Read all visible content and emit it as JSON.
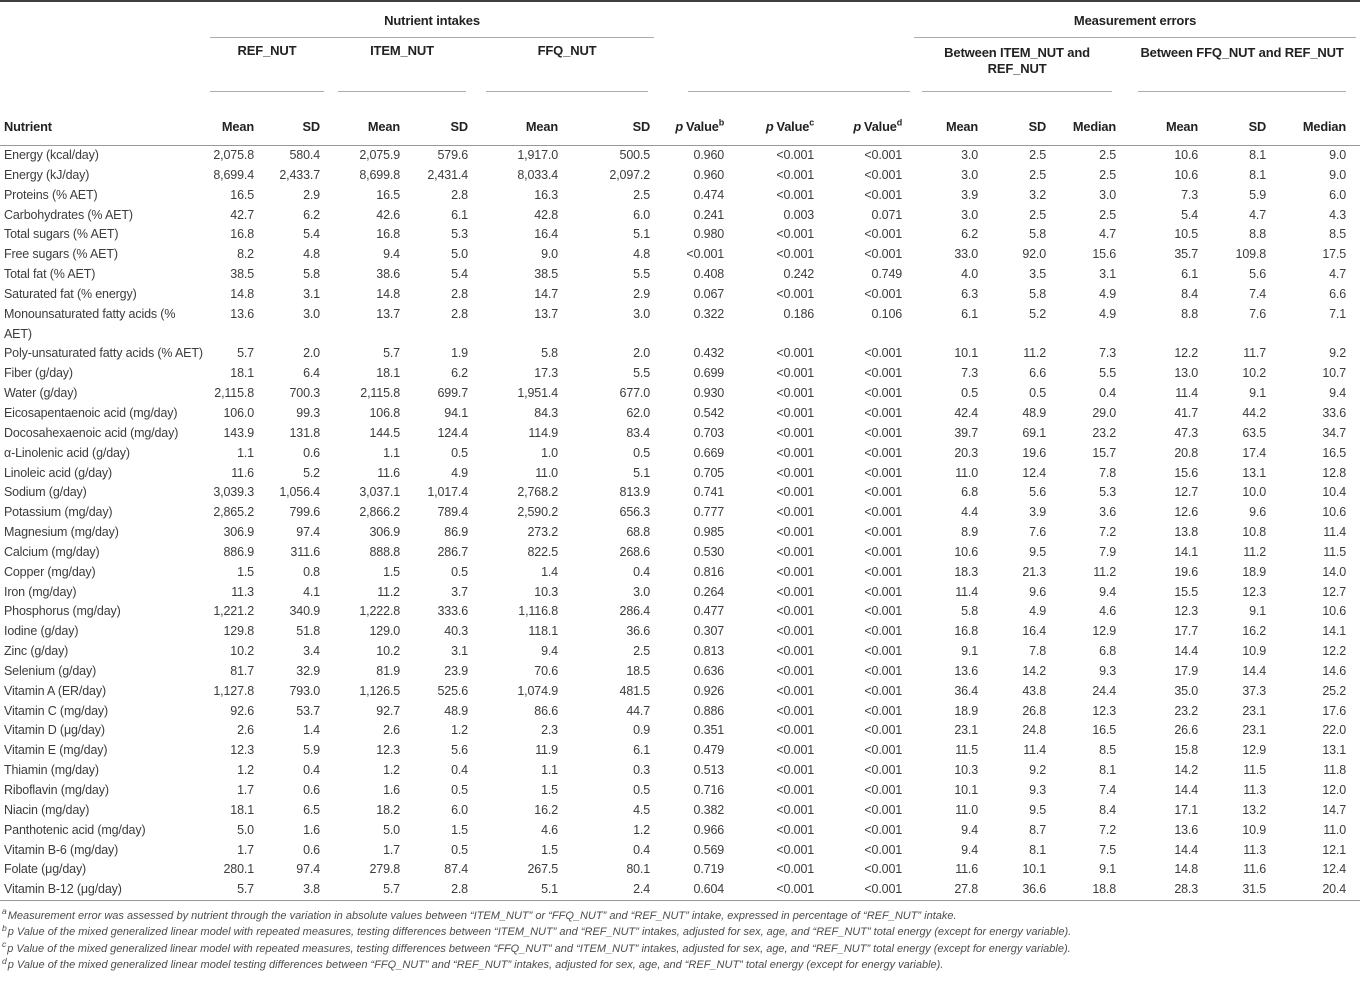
{
  "table": {
    "col_groups": {
      "nutrient_intakes": "Nutrient intakes",
      "measurement_errors": "Measurement errors"
    },
    "sub_groups": {
      "ref": "REF_NUT",
      "item": "ITEM_NUT",
      "ffq": "FFQ_NUT",
      "between_item_ref": "Between ITEM_NUT and REF_NUT",
      "between_ffq_ref": "Between FFQ_NUT and REF_NUT"
    },
    "columns": {
      "nutrient": "Nutrient",
      "mean": "Mean",
      "sd": "SD",
      "median": "Median",
      "p": "p",
      "value_word": "Value",
      "p_sups": [
        "b",
        "c",
        "d"
      ]
    },
    "rows": [
      {
        "name": "Energy (kcal/day)",
        "values": [
          "2,075.8",
          "580.4",
          "2,075.9",
          "579.6",
          "1,917.0",
          "500.5",
          "0.960",
          "<0.001",
          "<0.001",
          "3.0",
          "2.5",
          "2.5",
          "10.6",
          "8.1",
          "9.0"
        ]
      },
      {
        "name": "Energy (kJ/day)",
        "values": [
          "8,699.4",
          "2,433.7",
          "8,699.8",
          "2,431.4",
          "8,033.4",
          "2,097.2",
          "0.960",
          "<0.001",
          "<0.001",
          "3.0",
          "2.5",
          "2.5",
          "10.6",
          "8.1",
          "9.0"
        ]
      },
      {
        "name": "Proteins (% AET)",
        "values": [
          "16.5",
          "2.9",
          "16.5",
          "2.8",
          "16.3",
          "2.5",
          "0.474",
          "<0.001",
          "<0.001",
          "3.9",
          "3.2",
          "3.0",
          "7.3",
          "5.9",
          "6.0"
        ]
      },
      {
        "name": "Carbohydrates (% AET)",
        "values": [
          "42.7",
          "6.2",
          "42.6",
          "6.1",
          "42.8",
          "6.0",
          "0.241",
          "0.003",
          "0.071",
          "3.0",
          "2.5",
          "2.5",
          "5.4",
          "4.7",
          "4.3"
        ]
      },
      {
        "name": "Total sugars (% AET)",
        "values": [
          "16.8",
          "5.4",
          "16.8",
          "5.3",
          "16.4",
          "5.1",
          "0.980",
          "<0.001",
          "<0.001",
          "6.2",
          "5.8",
          "4.7",
          "10.5",
          "8.8",
          "8.5"
        ]
      },
      {
        "name": "Free sugars (% AET)",
        "values": [
          "8.2",
          "4.8",
          "9.4",
          "5.0",
          "9.0",
          "4.8",
          "<0.001",
          "<0.001",
          "<0.001",
          "33.0",
          "92.0",
          "15.6",
          "35.7",
          "109.8",
          "17.5"
        ]
      },
      {
        "name": "Total fat (% AET)",
        "values": [
          "38.5",
          "5.8",
          "38.6",
          "5.4",
          "38.5",
          "5.5",
          "0.408",
          "0.242",
          "0.749",
          "4.0",
          "3.5",
          "3.1",
          "6.1",
          "5.6",
          "4.7"
        ]
      },
      {
        "name": "Saturated fat (% energy)",
        "values": [
          "14.8",
          "3.1",
          "14.8",
          "2.8",
          "14.7",
          "2.9",
          "0.067",
          "<0.001",
          "<0.001",
          "6.3",
          "5.8",
          "4.9",
          "8.4",
          "7.4",
          "6.6"
        ]
      },
      {
        "name": "Monounsaturated fatty acids (% AET)",
        "values": [
          "13.6",
          "3.0",
          "13.7",
          "2.8",
          "13.7",
          "3.0",
          "0.322",
          "0.186",
          "0.106",
          "6.1",
          "5.2",
          "4.9",
          "8.8",
          "7.6",
          "7.1"
        ]
      },
      {
        "name": "Poly-unsaturated fatty acids (% AET)",
        "values": [
          "5.7",
          "2.0",
          "5.7",
          "1.9",
          "5.8",
          "2.0",
          "0.432",
          "<0.001",
          "<0.001",
          "10.1",
          "11.2",
          "7.3",
          "12.2",
          "11.7",
          "9.2"
        ]
      },
      {
        "name": "Fiber (g/day)",
        "values": [
          "18.1",
          "6.4",
          "18.1",
          "6.2",
          "17.3",
          "5.5",
          "0.699",
          "<0.001",
          "<0.001",
          "7.3",
          "6.6",
          "5.5",
          "13.0",
          "10.2",
          "10.7"
        ]
      },
      {
        "name": "Water (g/day)",
        "values": [
          "2,115.8",
          "700.3",
          "2,115.8",
          "699.7",
          "1,951.4",
          "677.0",
          "0.930",
          "<0.001",
          "<0.001",
          "0.5",
          "0.5",
          "0.4",
          "11.4",
          "9.1",
          "9.4"
        ]
      },
      {
        "name": "Eicosapentaenoic acid (mg/day)",
        "values": [
          "106.0",
          "99.3",
          "106.8",
          "94.1",
          "84.3",
          "62.0",
          "0.542",
          "<0.001",
          "<0.001",
          "42.4",
          "48.9",
          "29.0",
          "41.7",
          "44.2",
          "33.6"
        ]
      },
      {
        "name": "Docosahexaenoic acid (mg/day)",
        "values": [
          "143.9",
          "131.8",
          "144.5",
          "124.4",
          "114.9",
          "83.4",
          "0.703",
          "<0.001",
          "<0.001",
          "39.7",
          "69.1",
          "23.2",
          "47.3",
          "63.5",
          "34.7"
        ]
      },
      {
        "name": "α-Linolenic acid (g/day)",
        "values": [
          "1.1",
          "0.6",
          "1.1",
          "0.5",
          "1.0",
          "0.5",
          "0.669",
          "<0.001",
          "<0.001",
          "20.3",
          "19.6",
          "15.7",
          "20.8",
          "17.4",
          "16.5"
        ]
      },
      {
        "name": "Linoleic acid (g/day)",
        "values": [
          "11.6",
          "5.2",
          "11.6",
          "4.9",
          "11.0",
          "5.1",
          "0.705",
          "<0.001",
          "<0.001",
          "11.0",
          "12.4",
          "7.8",
          "15.6",
          "13.1",
          "12.8"
        ]
      },
      {
        "name": "Sodium (g/day)",
        "values": [
          "3,039.3",
          "1,056.4",
          "3,037.1",
          "1,017.4",
          "2,768.2",
          "813.9",
          "0.741",
          "<0.001",
          "<0.001",
          "6.8",
          "5.6",
          "5.3",
          "12.7",
          "10.0",
          "10.4"
        ]
      },
      {
        "name": "Potassium (mg/day)",
        "values": [
          "2,865.2",
          "799.6",
          "2,866.2",
          "789.4",
          "2,590.2",
          "656.3",
          "0.777",
          "<0.001",
          "<0.001",
          "4.4",
          "3.9",
          "3.6",
          "12.6",
          "9.6",
          "10.6"
        ]
      },
      {
        "name": "Magnesium (mg/day)",
        "values": [
          "306.9",
          "97.4",
          "306.9",
          "86.9",
          "273.2",
          "68.8",
          "0.985",
          "<0.001",
          "<0.001",
          "8.9",
          "7.6",
          "7.2",
          "13.8",
          "10.8",
          "11.4"
        ]
      },
      {
        "name": "Calcium (mg/day)",
        "values": [
          "886.9",
          "311.6",
          "888.8",
          "286.7",
          "822.5",
          "268.6",
          "0.530",
          "<0.001",
          "<0.001",
          "10.6",
          "9.5",
          "7.9",
          "14.1",
          "11.2",
          "11.5"
        ]
      },
      {
        "name": "Copper (mg/day)",
        "values": [
          "1.5",
          "0.8",
          "1.5",
          "0.5",
          "1.4",
          "0.4",
          "0.816",
          "<0.001",
          "<0.001",
          "18.3",
          "21.3",
          "11.2",
          "19.6",
          "18.9",
          "14.0"
        ]
      },
      {
        "name": "Iron (mg/day)",
        "values": [
          "11.3",
          "4.1",
          "11.2",
          "3.7",
          "10.3",
          "3.0",
          "0.264",
          "<0.001",
          "<0.001",
          "11.4",
          "9.6",
          "9.4",
          "15.5",
          "12.3",
          "12.7"
        ]
      },
      {
        "name": "Phosphorus (mg/day)",
        "values": [
          "1,221.2",
          "340.9",
          "1,222.8",
          "333.6",
          "1,116.8",
          "286.4",
          "0.477",
          "<0.001",
          "<0.001",
          "5.8",
          "4.9",
          "4.6",
          "12.3",
          "9.1",
          "10.6"
        ]
      },
      {
        "name": "Iodine (g/day)",
        "values": [
          "129.8",
          "51.8",
          "129.0",
          "40.3",
          "118.1",
          "36.6",
          "0.307",
          "<0.001",
          "<0.001",
          "16.8",
          "16.4",
          "12.9",
          "17.7",
          "16.2",
          "14.1"
        ]
      },
      {
        "name": "Zinc (g/day)",
        "values": [
          "10.2",
          "3.4",
          "10.2",
          "3.1",
          "9.4",
          "2.5",
          "0.813",
          "<0.001",
          "<0.001",
          "9.1",
          "7.8",
          "6.8",
          "14.4",
          "10.9",
          "12.2"
        ]
      },
      {
        "name": "Selenium (g/day)",
        "values": [
          "81.7",
          "32.9",
          "81.9",
          "23.9",
          "70.6",
          "18.5",
          "0.636",
          "<0.001",
          "<0.001",
          "13.6",
          "14.2",
          "9.3",
          "17.9",
          "14.4",
          "14.6"
        ]
      },
      {
        "name": "Vitamin A (ER/day)",
        "values": [
          "1,127.8",
          "793.0",
          "1,126.5",
          "525.6",
          "1,074.9",
          "481.5",
          "0.926",
          "<0.001",
          "<0.001",
          "36.4",
          "43.8",
          "24.4",
          "35.0",
          "37.3",
          "25.2"
        ]
      },
      {
        "name": "Vitamin C (mg/day)",
        "values": [
          "92.6",
          "53.7",
          "92.7",
          "48.9",
          "86.6",
          "44.7",
          "0.886",
          "<0.001",
          "<0.001",
          "18.9",
          "26.8",
          "12.3",
          "23.2",
          "23.1",
          "17.6"
        ]
      },
      {
        "name": "Vitamin D (μg/day)",
        "values": [
          "2.6",
          "1.4",
          "2.6",
          "1.2",
          "2.3",
          "0.9",
          "0.351",
          "<0.001",
          "<0.001",
          "23.1",
          "24.8",
          "16.5",
          "26.6",
          "23.1",
          "22.0"
        ]
      },
      {
        "name": "Vitamin E (mg/day)",
        "values": [
          "12.3",
          "5.9",
          "12.3",
          "5.6",
          "11.9",
          "6.1",
          "0.479",
          "<0.001",
          "<0.001",
          "11.5",
          "11.4",
          "8.5",
          "15.8",
          "12.9",
          "13.1"
        ]
      },
      {
        "name": "Thiamin (mg/day)",
        "values": [
          "1.2",
          "0.4",
          "1.2",
          "0.4",
          "1.1",
          "0.3",
          "0.513",
          "<0.001",
          "<0.001",
          "10.3",
          "9.2",
          "8.1",
          "14.2",
          "11.5",
          "11.8"
        ]
      },
      {
        "name": "Riboflavin (mg/day)",
        "values": [
          "1.7",
          "0.6",
          "1.6",
          "0.5",
          "1.5",
          "0.5",
          "0.716",
          "<0.001",
          "<0.001",
          "10.1",
          "9.3",
          "7.4",
          "14.4",
          "11.3",
          "12.0"
        ]
      },
      {
        "name": "Niacin (mg/day)",
        "values": [
          "18.1",
          "6.5",
          "18.2",
          "6.0",
          "16.2",
          "4.5",
          "0.382",
          "<0.001",
          "<0.001",
          "11.0",
          "9.5",
          "8.4",
          "17.1",
          "13.2",
          "14.7"
        ]
      },
      {
        "name": "Panthotenic acid (mg/day)",
        "values": [
          "5.0",
          "1.6",
          "5.0",
          "1.5",
          "4.6",
          "1.2",
          "0.966",
          "<0.001",
          "<0.001",
          "9.4",
          "8.7",
          "7.2",
          "13.6",
          "10.9",
          "11.0"
        ]
      },
      {
        "name": "Vitamin B-6 (mg/day)",
        "values": [
          "1.7",
          "0.6",
          "1.7",
          "0.5",
          "1.5",
          "0.4",
          "0.569",
          "<0.001",
          "<0.001",
          "9.4",
          "8.1",
          "7.5",
          "14.4",
          "11.3",
          "12.1"
        ]
      },
      {
        "name": "Folate (μg/day)",
        "values": [
          "280.1",
          "97.4",
          "279.8",
          "87.4",
          "267.5",
          "80.1",
          "0.719",
          "<0.001",
          "<0.001",
          "11.6",
          "10.1",
          "9.1",
          "14.8",
          "11.6",
          "12.4"
        ]
      },
      {
        "name": "Vitamin B-12 (μg/day)",
        "values": [
          "5.7",
          "3.8",
          "5.7",
          "2.8",
          "5.1",
          "2.4",
          "0.604",
          "<0.001",
          "<0.001",
          "27.8",
          "36.6",
          "18.8",
          "28.3",
          "31.5",
          "20.4"
        ]
      }
    ]
  },
  "footnotes": [
    {
      "sup": "a",
      "text": "Measurement error was assessed by nutrient through the variation in absolute values between “ITEM_NUT” or “FFQ_NUT” and “REF_NUT” intake, expressed in percentage of “REF_NUT” intake."
    },
    {
      "sup": "b",
      "text": "p Value of the mixed generalized linear model with repeated measures, testing differences between “ITEM_NUT” and “REF_NUT” intakes, adjusted for sex, age, and “REF_NUT” total energy (except for energy variable)."
    },
    {
      "sup": "c",
      "text": "p Value of the mixed generalized linear model with repeated measures, testing differences between “FFQ_NUT” and “ITEM_NUT” intakes, adjusted for sex, age, and “REF_NUT” total energy (except for energy variable)."
    },
    {
      "sup": "d",
      "text": "p Value of the mixed generalized linear model testing differences between “FFQ_NUT” and “REF_NUT” intakes, adjusted for sex, age, and “REF_NUT” total energy (except for energy variable)."
    }
  ],
  "colors": {
    "text": "#3c3c3c",
    "heading": "#222222",
    "rule_dark": "#3e3e3e",
    "rule_light": "#ababab",
    "rule_medium": "#989898"
  }
}
